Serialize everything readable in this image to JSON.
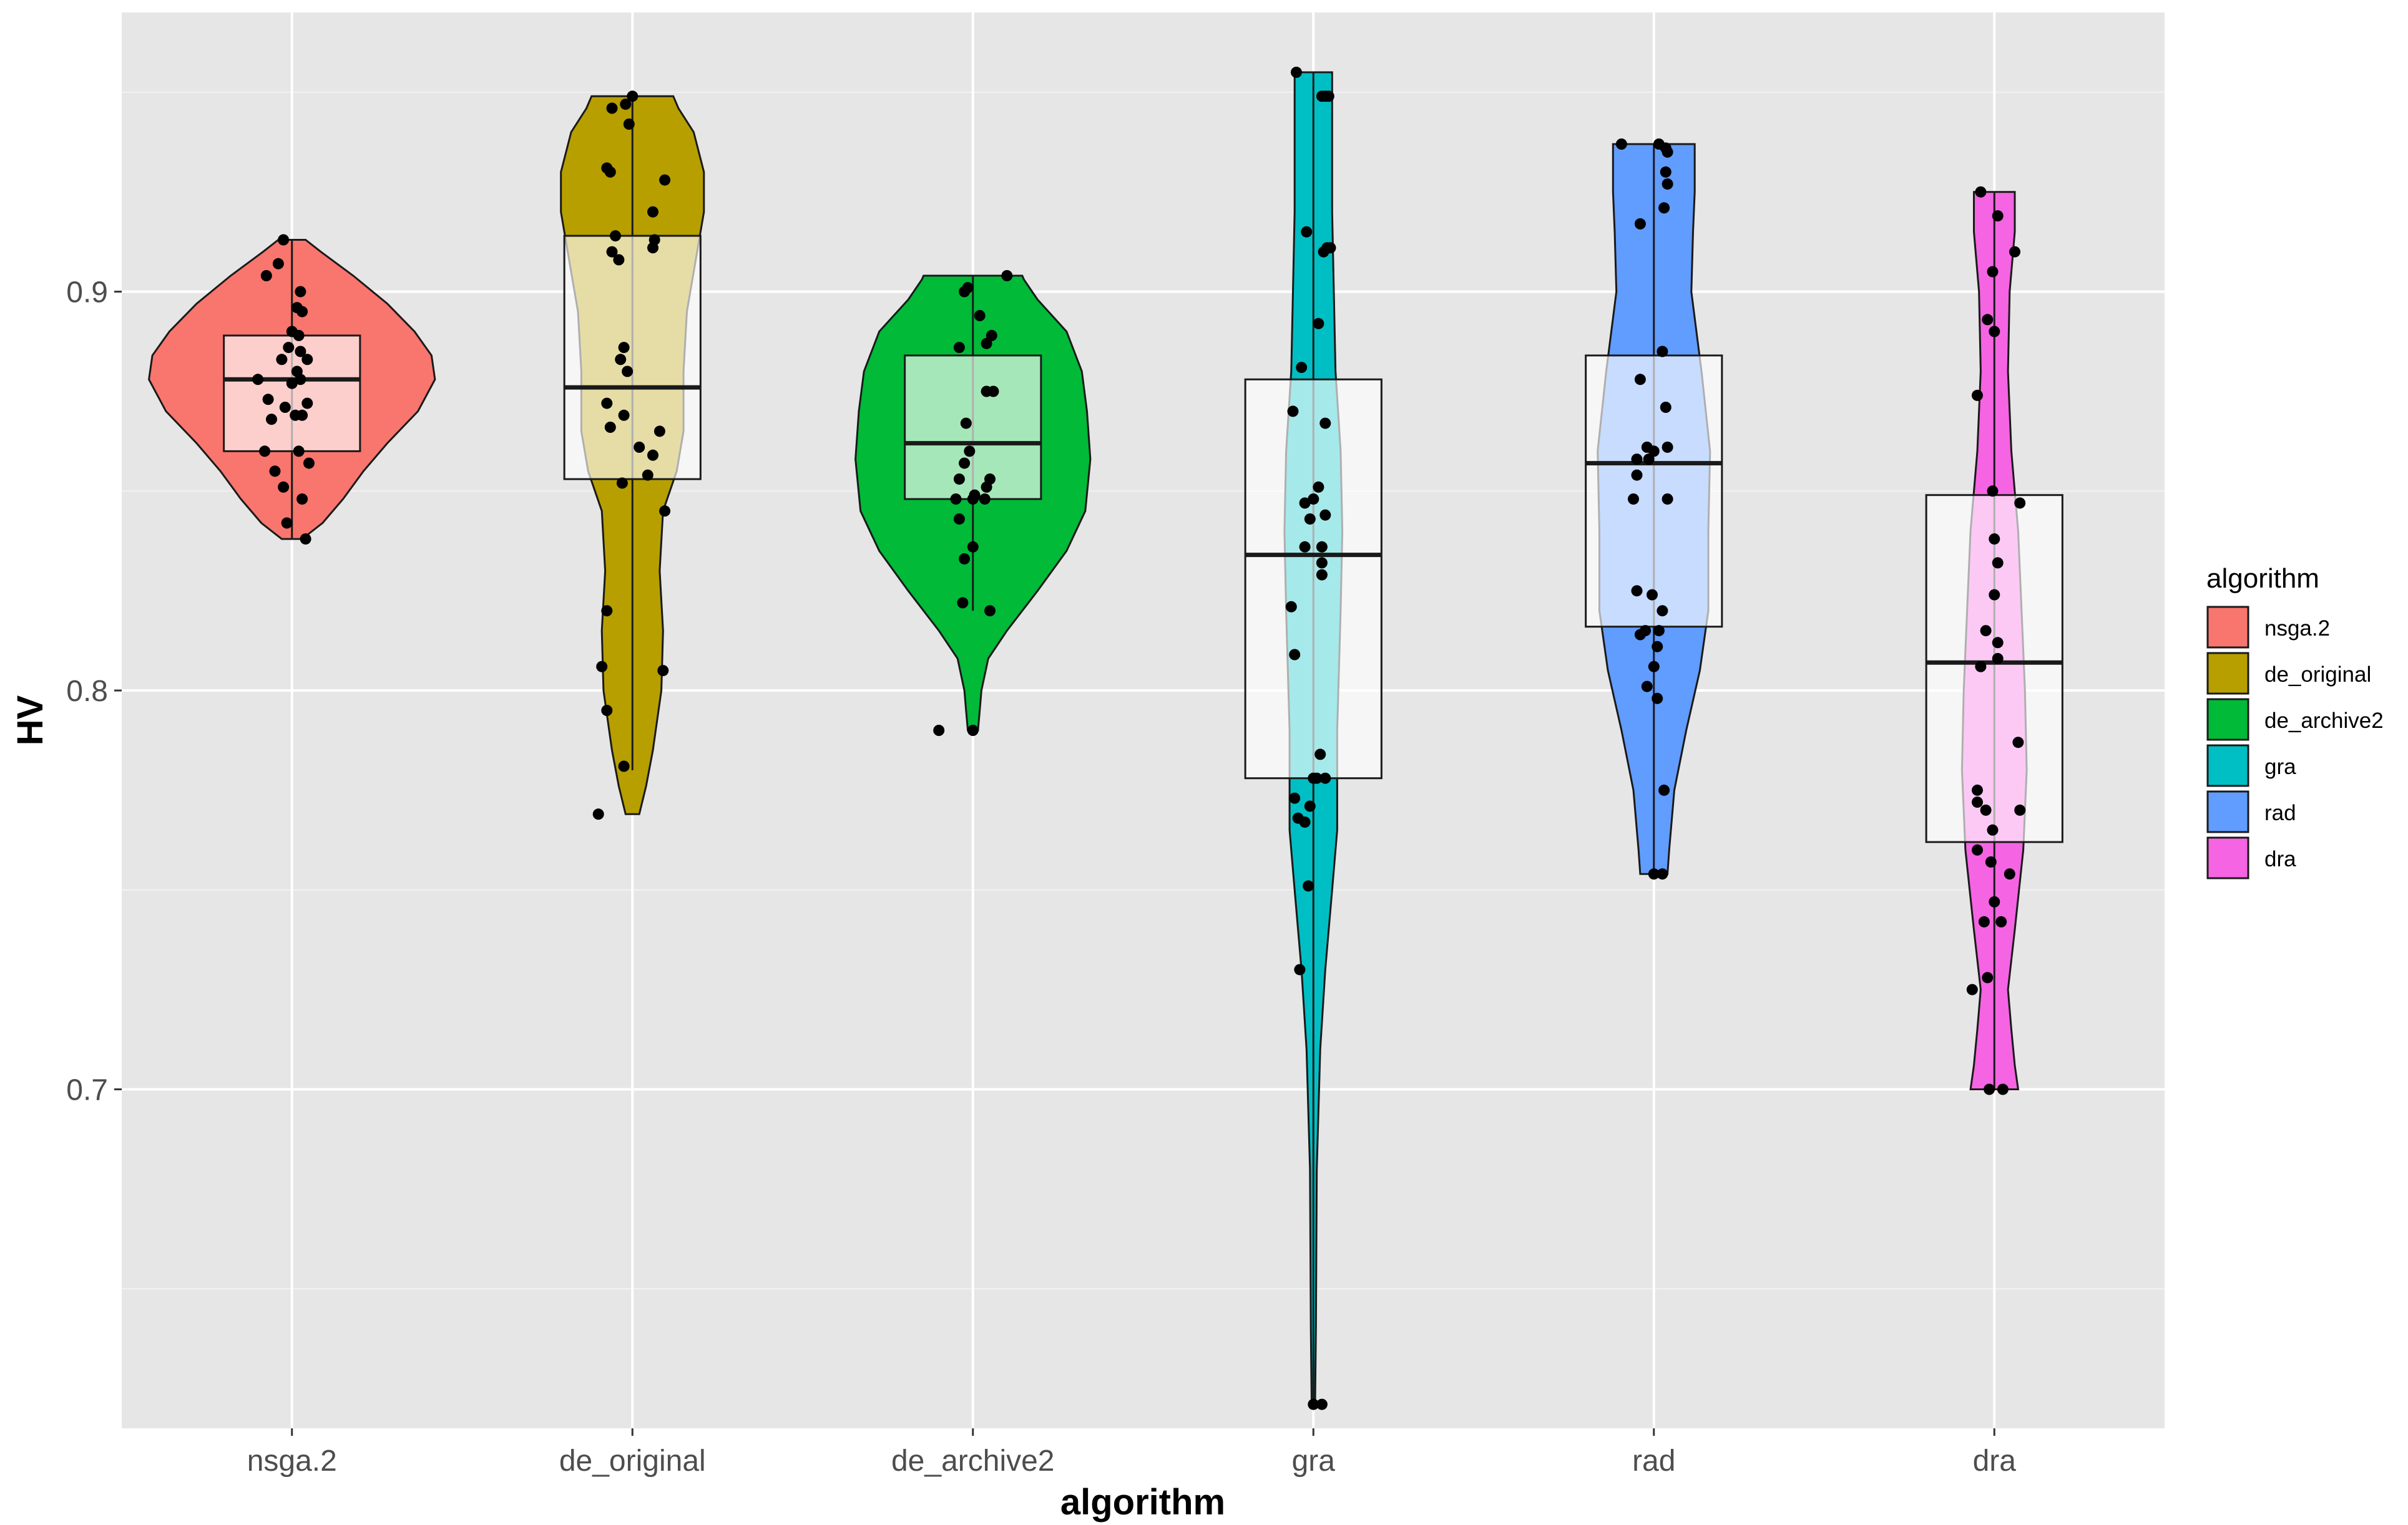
{
  "chart_data": {
    "type": "violin",
    "xlabel": "algorithm",
    "ylabel": "HV",
    "ylim": [
      0.615,
      0.97
    ],
    "y_ticks": [
      0.7,
      0.8,
      0.9
    ],
    "y_tick_labels": [
      "0.7",
      "0.8",
      "0.9"
    ],
    "grid": true,
    "legend": {
      "title": "algorithm",
      "placement": "right"
    },
    "categories": [
      "nsga.2",
      "de_original",
      "de_archive2",
      "gra",
      "rad",
      "dra"
    ],
    "series": [
      {
        "name": "nsga.2",
        "color": "#F8766D",
        "box": {
          "q1": 0.86,
          "median": 0.878,
          "q3": 0.889,
          "whisker_low": 0.838,
          "whisker_high": 0.913
        },
        "violin": [
          [
            0.838,
            0.06
          ],
          [
            0.842,
            0.18
          ],
          [
            0.848,
            0.3
          ],
          [
            0.855,
            0.42
          ],
          [
            0.862,
            0.56
          ],
          [
            0.87,
            0.74
          ],
          [
            0.878,
            0.84
          ],
          [
            0.884,
            0.82
          ],
          [
            0.89,
            0.72
          ],
          [
            0.897,
            0.56
          ],
          [
            0.904,
            0.36
          ],
          [
            0.91,
            0.17
          ],
          [
            0.913,
            0.08
          ]
        ],
        "points": [
          [
            -0.05,
            0.913
          ],
          [
            -0.08,
            0.907
          ],
          [
            -0.15,
            0.904
          ],
          [
            0.05,
            0.9
          ],
          [
            0.03,
            0.896
          ],
          [
            0.06,
            0.895
          ],
          [
            0.0,
            0.89
          ],
          [
            0.04,
            0.889
          ],
          [
            -0.02,
            0.886
          ],
          [
            0.05,
            0.885
          ],
          [
            0.09,
            0.883
          ],
          [
            -0.06,
            0.883
          ],
          [
            0.03,
            0.88
          ],
          [
            0.05,
            0.878
          ],
          [
            0.0,
            0.877
          ],
          [
            -0.2,
            0.878
          ],
          [
            -0.14,
            0.873
          ],
          [
            0.09,
            0.872
          ],
          [
            -0.04,
            0.871
          ],
          [
            0.02,
            0.869
          ],
          [
            0.06,
            0.869
          ],
          [
            -0.12,
            0.868
          ],
          [
            0.04,
            0.86
          ],
          [
            -0.16,
            0.86
          ],
          [
            0.1,
            0.857
          ],
          [
            -0.1,
            0.855
          ],
          [
            -0.05,
            0.851
          ],
          [
            0.06,
            0.848
          ],
          [
            -0.03,
            0.842
          ],
          [
            0.08,
            0.838
          ]
        ]
      },
      {
        "name": "de_original",
        "color": "#B79F00",
        "box": {
          "q1": 0.853,
          "median": 0.876,
          "q3": 0.914,
          "whisker_low": 0.78,
          "whisker_high": 0.949
        },
        "violin": [
          [
            0.769,
            0.04
          ],
          [
            0.776,
            0.08
          ],
          [
            0.785,
            0.12
          ],
          [
            0.8,
            0.17
          ],
          [
            0.815,
            0.18
          ],
          [
            0.83,
            0.16
          ],
          [
            0.845,
            0.18
          ],
          [
            0.855,
            0.26
          ],
          [
            0.865,
            0.3
          ],
          [
            0.88,
            0.3
          ],
          [
            0.895,
            0.32
          ],
          [
            0.91,
            0.38
          ],
          [
            0.92,
            0.42
          ],
          [
            0.93,
            0.42
          ],
          [
            0.94,
            0.36
          ],
          [
            0.946,
            0.27
          ],
          [
            0.949,
            0.24
          ]
        ],
        "points": [
          [
            0.0,
            0.949
          ],
          [
            -0.12,
            0.946
          ],
          [
            -0.04,
            0.947
          ],
          [
            -0.02,
            0.942
          ],
          [
            -0.15,
            0.931
          ],
          [
            -0.13,
            0.93
          ],
          [
            0.19,
            0.928
          ],
          [
            0.12,
            0.92
          ],
          [
            -0.1,
            0.914
          ],
          [
            0.13,
            0.913
          ],
          [
            0.12,
            0.911
          ],
          [
            -0.12,
            0.91
          ],
          [
            -0.08,
            0.908
          ],
          [
            -0.05,
            0.886
          ],
          [
            -0.07,
            0.883
          ],
          [
            -0.03,
            0.88
          ],
          [
            -0.15,
            0.872
          ],
          [
            -0.05,
            0.869
          ],
          [
            -0.13,
            0.866
          ],
          [
            0.16,
            0.865
          ],
          [
            0.04,
            0.861
          ],
          [
            0.12,
            0.859
          ],
          [
            0.09,
            0.854
          ],
          [
            -0.06,
            0.852
          ],
          [
            0.19,
            0.845
          ],
          [
            -0.15,
            0.82
          ],
          [
            -0.18,
            0.806
          ],
          [
            0.18,
            0.805
          ],
          [
            -0.15,
            0.795
          ],
          [
            -0.05,
            0.781
          ],
          [
            -0.2,
            0.769
          ]
        ]
      },
      {
        "name": "de_archive2",
        "color": "#00BA38",
        "box": {
          "q1": 0.848,
          "median": 0.862,
          "q3": 0.884,
          "whisker_low": 0.82,
          "whisker_high": 0.904
        },
        "violin": [
          [
            0.79,
            0.03
          ],
          [
            0.795,
            0.04
          ],
          [
            0.8,
            0.05
          ],
          [
            0.808,
            0.09
          ],
          [
            0.815,
            0.2
          ],
          [
            0.825,
            0.38
          ],
          [
            0.835,
            0.55
          ],
          [
            0.845,
            0.66
          ],
          [
            0.858,
            0.69
          ],
          [
            0.87,
            0.67
          ],
          [
            0.88,
            0.64
          ],
          [
            0.89,
            0.55
          ],
          [
            0.898,
            0.38
          ],
          [
            0.903,
            0.3
          ],
          [
            0.904,
            0.29
          ]
        ],
        "points": [
          [
            0.2,
            0.904
          ],
          [
            -0.03,
            0.901
          ],
          [
            -0.05,
            0.9
          ],
          [
            0.04,
            0.894
          ],
          [
            0.11,
            0.889
          ],
          [
            0.08,
            0.887
          ],
          [
            -0.08,
            0.886
          ],
          [
            0.12,
            0.875
          ],
          [
            0.08,
            0.875
          ],
          [
            -0.04,
            0.867
          ],
          [
            -0.02,
            0.86
          ],
          [
            -0.05,
            0.857
          ],
          [
            0.1,
            0.853
          ],
          [
            -0.08,
            0.853
          ],
          [
            0.08,
            0.851
          ],
          [
            0.01,
            0.849
          ],
          [
            0.0,
            0.848
          ],
          [
            -0.1,
            0.848
          ],
          [
            0.07,
            0.848
          ],
          [
            -0.08,
            0.843
          ],
          [
            0.0,
            0.836
          ],
          [
            -0.05,
            0.833
          ],
          [
            0.1,
            0.82
          ],
          [
            -0.06,
            0.822
          ],
          [
            -0.2,
            0.79
          ],
          [
            0.0,
            0.79
          ]
        ]
      },
      {
        "name": "gra",
        "color": "#00BFC4",
        "box": {
          "q1": 0.778,
          "median": 0.834,
          "q3": 0.878,
          "whisker_low": 0.621,
          "whisker_high": 0.955
        },
        "violin": [
          [
            0.621,
            0.01
          ],
          [
            0.64,
            0.015
          ],
          [
            0.68,
            0.02
          ],
          [
            0.71,
            0.04
          ],
          [
            0.73,
            0.07
          ],
          [
            0.75,
            0.11
          ],
          [
            0.765,
            0.14
          ],
          [
            0.79,
            0.14
          ],
          [
            0.82,
            0.16
          ],
          [
            0.84,
            0.17
          ],
          [
            0.86,
            0.16
          ],
          [
            0.88,
            0.13
          ],
          [
            0.9,
            0.12
          ],
          [
            0.92,
            0.11
          ],
          [
            0.94,
            0.11
          ],
          [
            0.955,
            0.11
          ]
        ],
        "points": [
          [
            -0.1,
            0.955
          ],
          [
            0.05,
            0.949
          ],
          [
            0.07,
            0.949
          ],
          [
            0.09,
            0.949
          ],
          [
            -0.04,
            0.915
          ],
          [
            0.08,
            0.911
          ],
          [
            0.1,
            0.911
          ],
          [
            0.06,
            0.91
          ],
          [
            0.03,
            0.892
          ],
          [
            -0.07,
            0.881
          ],
          [
            0.07,
            0.867
          ],
          [
            -0.12,
            0.87
          ],
          [
            0.03,
            0.851
          ],
          [
            0.0,
            0.848
          ],
          [
            -0.05,
            0.847
          ],
          [
            -0.02,
            0.843
          ],
          [
            0.07,
            0.844
          ],
          [
            -0.05,
            0.836
          ],
          [
            0.05,
            0.836
          ],
          [
            0.05,
            0.832
          ],
          [
            0.05,
            0.829
          ],
          [
            -0.13,
            0.821
          ],
          [
            -0.11,
            0.809
          ],
          [
            0.04,
            0.784
          ],
          [
            0.02,
            0.778
          ],
          [
            0.07,
            0.778
          ],
          [
            0.0,
            0.778
          ],
          [
            -0.11,
            0.773
          ],
          [
            -0.09,
            0.768
          ],
          [
            -0.05,
            0.767
          ],
          [
            -0.02,
            0.771
          ],
          [
            -0.03,
            0.751
          ],
          [
            -0.08,
            0.73
          ],
          [
            0.0,
            0.621
          ],
          [
            0.05,
            0.621
          ]
        ]
      },
      {
        "name": "rad",
        "color": "#619CFF",
        "box": {
          "q1": 0.816,
          "median": 0.857,
          "q3": 0.884,
          "whisker_low": 0.754,
          "whisker_high": 0.937
        },
        "violin": [
          [
            0.754,
            0.08
          ],
          [
            0.76,
            0.09
          ],
          [
            0.775,
            0.12
          ],
          [
            0.79,
            0.19
          ],
          [
            0.805,
            0.27
          ],
          [
            0.82,
            0.32
          ],
          [
            0.84,
            0.32
          ],
          [
            0.86,
            0.33
          ],
          [
            0.88,
            0.28
          ],
          [
            0.9,
            0.22
          ],
          [
            0.915,
            0.23
          ],
          [
            0.925,
            0.24
          ],
          [
            0.935,
            0.24
          ],
          [
            0.937,
            0.24
          ]
        ],
        "points": [
          [
            -0.19,
            0.937
          ],
          [
            0.03,
            0.937
          ],
          [
            0.07,
            0.936
          ],
          [
            0.08,
            0.935
          ],
          [
            0.07,
            0.93
          ],
          [
            0.08,
            0.927
          ],
          [
            0.06,
            0.921
          ],
          [
            -0.08,
            0.917
          ],
          [
            0.05,
            0.885
          ],
          [
            -0.08,
            0.878
          ],
          [
            0.07,
            0.871
          ],
          [
            0.08,
            0.861
          ],
          [
            -0.04,
            0.861
          ],
          [
            -0.1,
            0.858
          ],
          [
            0.0,
            0.86
          ],
          [
            -0.03,
            0.858
          ],
          [
            -0.1,
            0.854
          ],
          [
            -0.12,
            0.848
          ],
          [
            0.08,
            0.848
          ],
          [
            -0.1,
            0.825
          ],
          [
            -0.01,
            0.824
          ],
          [
            0.05,
            0.82
          ],
          [
            -0.08,
            0.814
          ],
          [
            0.03,
            0.815
          ],
          [
            -0.05,
            0.815
          ],
          [
            0.02,
            0.811
          ],
          [
            0.0,
            0.806
          ],
          [
            -0.04,
            0.801
          ],
          [
            0.02,
            0.798
          ],
          [
            0.06,
            0.775
          ],
          [
            0.05,
            0.754
          ],
          [
            0.0,
            0.754
          ]
        ]
      },
      {
        "name": "dra",
        "color": "#F564E3",
        "box": {
          "q1": 0.762,
          "median": 0.807,
          "q3": 0.849,
          "whisker_low": 0.7,
          "whisker_high": 0.925
        },
        "violin": [
          [
            0.7,
            0.14
          ],
          [
            0.706,
            0.12
          ],
          [
            0.715,
            0.1
          ],
          [
            0.725,
            0.08
          ],
          [
            0.74,
            0.12
          ],
          [
            0.76,
            0.17
          ],
          [
            0.78,
            0.19
          ],
          [
            0.8,
            0.18
          ],
          [
            0.82,
            0.16
          ],
          [
            0.84,
            0.14
          ],
          [
            0.86,
            0.1
          ],
          [
            0.88,
            0.08
          ],
          [
            0.9,
            0.09
          ],
          [
            0.915,
            0.12
          ],
          [
            0.925,
            0.12
          ]
        ],
        "points": [
          [
            -0.08,
            0.925
          ],
          [
            0.02,
            0.919
          ],
          [
            0.12,
            0.91
          ],
          [
            -0.01,
            0.905
          ],
          [
            -0.04,
            0.893
          ],
          [
            0.0,
            0.89
          ],
          [
            -0.1,
            0.874
          ],
          [
            -0.01,
            0.85
          ],
          [
            0.15,
            0.847
          ],
          [
            0.0,
            0.838
          ],
          [
            0.02,
            0.832
          ],
          [
            0.0,
            0.824
          ],
          [
            -0.05,
            0.815
          ],
          [
            0.02,
            0.812
          ],
          [
            -0.08,
            0.806
          ],
          [
            0.02,
            0.808
          ],
          [
            0.14,
            0.787
          ],
          [
            -0.1,
            0.775
          ],
          [
            -0.1,
            0.772
          ],
          [
            -0.05,
            0.77
          ],
          [
            0.15,
            0.77
          ],
          [
            -0.01,
            0.765
          ],
          [
            -0.1,
            0.76
          ],
          [
            -0.02,
            0.757
          ],
          [
            0.09,
            0.754
          ],
          [
            0.0,
            0.747
          ],
          [
            -0.06,
            0.742
          ],
          [
            0.04,
            0.742
          ],
          [
            -0.04,
            0.728
          ],
          [
            -0.13,
            0.725
          ],
          [
            -0.03,
            0.7
          ],
          [
            0.05,
            0.7
          ]
        ]
      }
    ]
  }
}
